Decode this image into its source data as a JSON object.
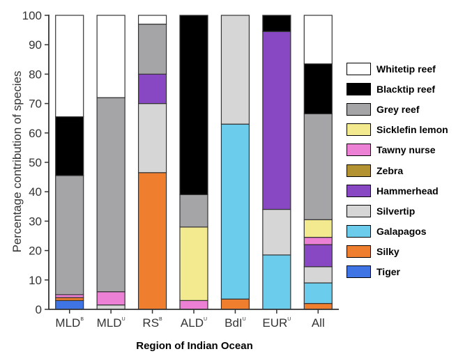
{
  "chart_data": {
    "type": "bar",
    "stacked": true,
    "ylabel": "Percentage contribution of species",
    "xlabel": "Region of Indian Ocean",
    "ylim": [
      0,
      100
    ],
    "yticks": [
      "0",
      "10",
      "20",
      "30",
      "40",
      "50",
      "60",
      "70",
      "80",
      "90",
      "100"
    ],
    "grid": false,
    "legend_position": "right",
    "categories": [
      {
        "base": "MLD",
        "sup": "B"
      },
      {
        "base": "MLD",
        "sup": "U"
      },
      {
        "base": "RS",
        "sup": "B"
      },
      {
        "base": "ALD",
        "sup": "U"
      },
      {
        "base": "BdI",
        "sup": "U"
      },
      {
        "base": "EUR",
        "sup": "U"
      },
      {
        "base": "All",
        "sup": ""
      }
    ],
    "series": [
      {
        "name": "Tiger",
        "color": "#3f74e4",
        "values": [
          3,
          0,
          0,
          0,
          0,
          0,
          0
        ]
      },
      {
        "name": "Silky",
        "color": "#ef7f2e",
        "values": [
          1,
          0,
          46.5,
          0,
          3.5,
          0,
          2
        ]
      },
      {
        "name": "Galapagos",
        "color": "#6cccec",
        "values": [
          0,
          0,
          0,
          0,
          59.5,
          18.5,
          7
        ]
      },
      {
        "name": "Silvertip",
        "color": "#d6d6d6",
        "values": [
          0,
          1.5,
          23.5,
          0,
          37,
          15.5,
          5.5
        ]
      },
      {
        "name": "Hammerhead",
        "color": "#8848c3",
        "values": [
          0,
          0,
          10,
          0,
          0,
          60.5,
          7.5
        ]
      },
      {
        "name": "Zebra",
        "color": "#b39232",
        "values": [
          0,
          0,
          0,
          0,
          0,
          0,
          0
        ]
      },
      {
        "name": "Tawny nurse",
        "color": "#ec80d5",
        "values": [
          1,
          4.5,
          0,
          3,
          0,
          0,
          2.5
        ]
      },
      {
        "name": "Sicklefin lemon",
        "color": "#f3e98e",
        "values": [
          0,
          0,
          0,
          25,
          0,
          0,
          6
        ]
      },
      {
        "name": "Grey reef",
        "color": "#a5a5a8",
        "values": [
          40.5,
          66,
          17,
          11,
          0,
          0,
          36
        ]
      },
      {
        "name": "Blacktip reef",
        "color": "#000000",
        "values": [
          20,
          0,
          0,
          61,
          0,
          5.5,
          17
        ]
      },
      {
        "name": "Whitetip reef",
        "color": "#ffffff",
        "values": [
          34.5,
          28,
          3,
          0,
          0,
          0,
          16.5
        ]
      }
    ]
  }
}
